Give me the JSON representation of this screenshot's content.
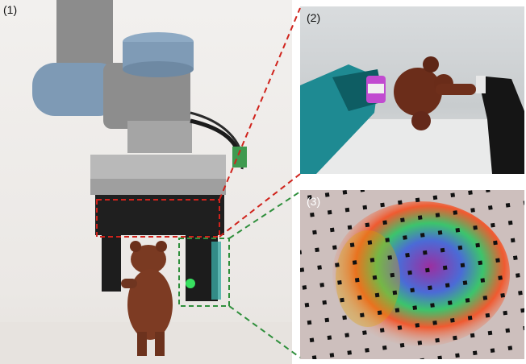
{
  "panels": {
    "main_label": "(1)",
    "zoom_label": "(2)",
    "tactile_label": "(3)"
  },
  "colors": {
    "red_callout": "#d0231c",
    "green_callout": "#2f8f3c",
    "robot_cap": "#7d9ab7",
    "robot_body": "#8a8a8a"
  }
}
